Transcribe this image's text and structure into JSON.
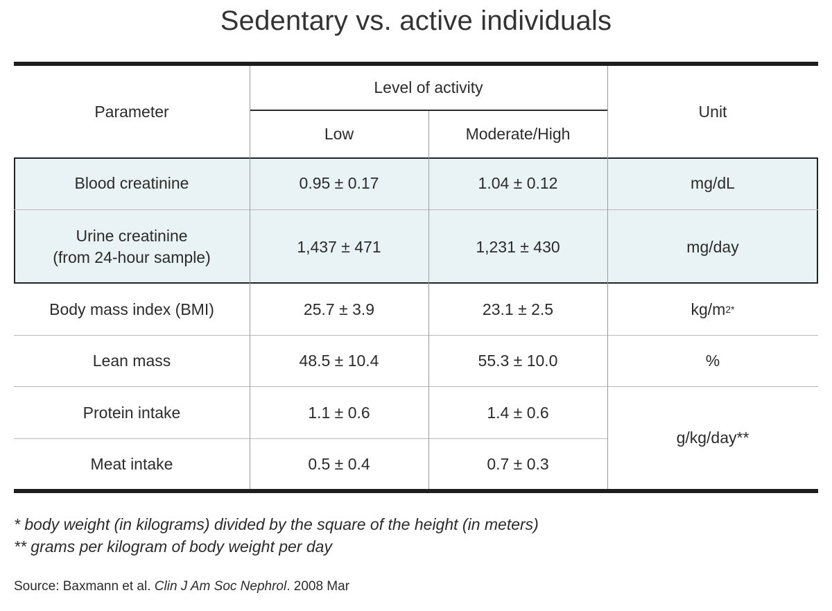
{
  "title": "Sedentary vs. active individuals",
  "header": {
    "parameter": "Parameter",
    "level_of_activity": "Level of activity",
    "low": "Low",
    "moderate_high": "Moderate/High",
    "unit": "Unit"
  },
  "rows": [
    {
      "parameter": "Blood creatinine",
      "low": "0.95 ± 0.17",
      "high": "1.04 ± 0.12",
      "unit": "mg/dL"
    },
    {
      "parameter_line1": "Urine creatinine",
      "parameter_line2": "(from 24-hour sample)",
      "low": "1,437 ± 471",
      "high": "1,231 ± 430",
      "unit": "mg/day"
    },
    {
      "parameter": "Body mass index (BMI)",
      "low": "25.7 ± 3.9",
      "high": "23.1 ± 2.5",
      "unit": "kg/m",
      "unit_sup": "2",
      "unit_suffix": "*"
    },
    {
      "parameter": "Lean mass",
      "low": "48.5 ± 10.4",
      "high": "55.3 ± 10.0",
      "unit": "%"
    },
    {
      "parameter": "Protein intake",
      "low": "1.1 ± 0.6",
      "high": "1.4 ± 0.6"
    },
    {
      "parameter": "Meat intake",
      "low": "0.5 ± 0.4",
      "high": "0.7 ± 0.3"
    }
  ],
  "shared_unit": "g/kg/day**",
  "footnotes": [
    "* body weight (in kilograms) divided by the square of the height (in meters)",
    "** grams per kilogram of body weight per day"
  ],
  "source": {
    "prefix": "Source: Baxmann et al. ",
    "journal": "Clin J Am Soc Nephrol",
    "suffix": ". 2008 Mar"
  },
  "colors": {
    "highlight_band": "#e9f2f5",
    "rule": "#1e1e1e"
  }
}
